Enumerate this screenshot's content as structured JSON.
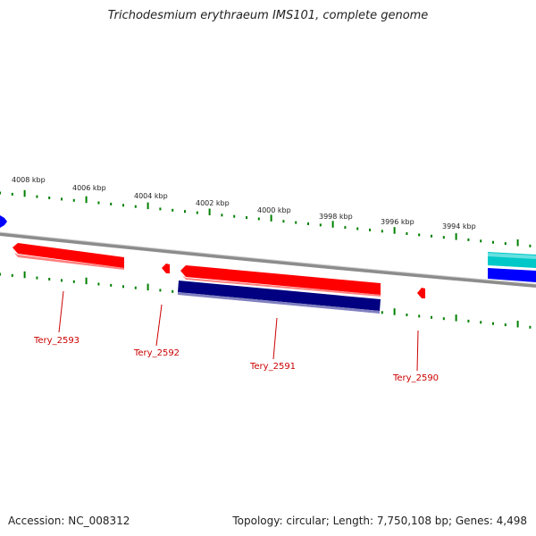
{
  "title": "Trichodesmium erythraeum IMS101, complete genome",
  "footer": {
    "accession": "Accession: NC_008312",
    "summary": "Topology: circular; Length: 7,750,108 bp; Genes: 4,498"
  },
  "scale_labels": [
    "4008 kbp",
    "4006 kbp",
    "4004 kbp",
    "4002 kbp",
    "4000 kbp",
    "3998 kbp",
    "3996 kbp",
    "3994 kbp"
  ],
  "genes": [
    {
      "label": "Tery_2593",
      "strand": "reverse",
      "color": "#ff0000"
    },
    {
      "label": "Tery_2592",
      "strand": "reverse",
      "color": "#ff0000"
    },
    {
      "label": "Tery_2591",
      "strand": "reverse",
      "color": "#ff0000"
    },
    {
      "label": "Tery_2590",
      "strand": "reverse",
      "color": "#ff0000"
    }
  ],
  "colors": {
    "gene_red": "#ff0000",
    "cds_navy": "#000080",
    "feature_blue": "#0000ff",
    "feature_cyan": "#00c8c8",
    "backbone": "#8c8c8c",
    "tick_green": "#008000",
    "label_red": "#cc0000"
  }
}
